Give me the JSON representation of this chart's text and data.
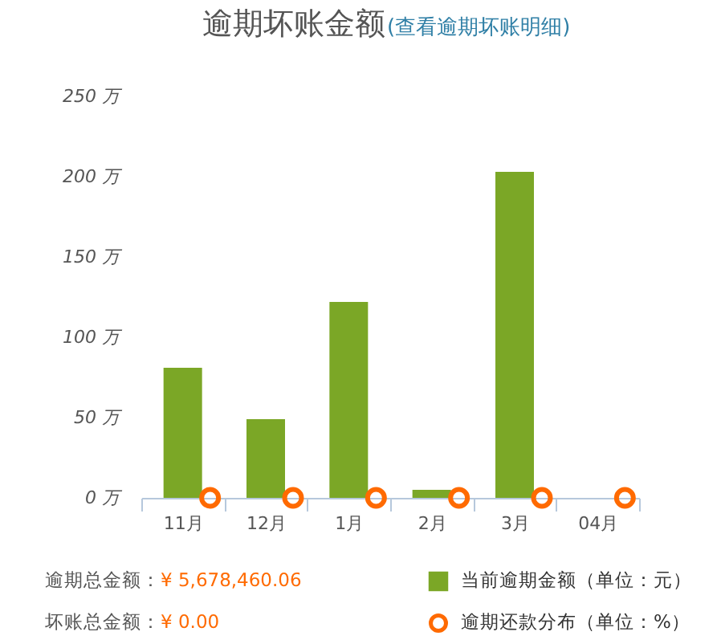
{
  "chart_data": {
    "type": "bar",
    "title": "逾期坏账金额",
    "subtitle": "(查看逾期坏账明细)",
    "categories": [
      "11月",
      "12月",
      "1月",
      "2月",
      "3月",
      "04月"
    ],
    "ylim": [
      0,
      250
    ],
    "yticks": [
      {
        "value": 0,
        "label": "0 万"
      },
      {
        "value": 50,
        "label": "50 万"
      },
      {
        "value": 100,
        "label": "100 万"
      },
      {
        "value": 150,
        "label": "150 万"
      },
      {
        "value": 200,
        "label": "200 万"
      },
      {
        "value": 250,
        "label": "250 万"
      }
    ],
    "series": [
      {
        "name": "当前逾期金额（单位：元）",
        "color": "#7ba726",
        "values": [
          81,
          49,
          122,
          5,
          203,
          0
        ]
      },
      {
        "name": "逾期还款分布（单位：%）",
        "type": "scatter",
        "color": "#ff6a00",
        "marker": "circle",
        "values": [
          0,
          0,
          0,
          0,
          0,
          0
        ]
      }
    ],
    "grid": false,
    "legend": "bottom right",
    "annotations": [
      "逾期总金额：¥ 5,678,460.06",
      "坏账总金额：¥ 0.00"
    ]
  }
}
